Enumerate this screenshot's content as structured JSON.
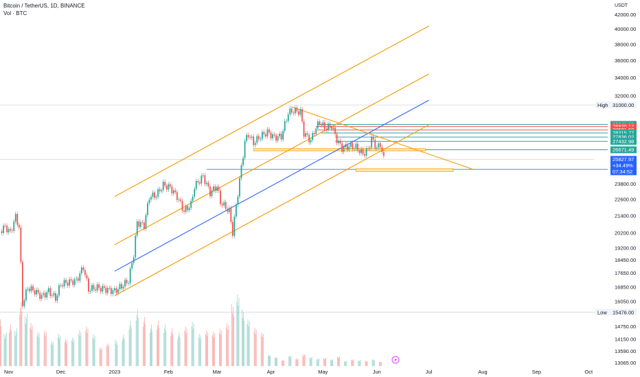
{
  "header": {
    "symbol": "Bitcoin / TetherUS, 1D, BINANCE",
    "volume": "Vol · BTC",
    "currency": "USDT"
  },
  "colors": {
    "up": "#26a69a",
    "down": "#ef5350",
    "vol_up": "#9fd4cd",
    "vol_down": "#f7a9a7",
    "channel": "#f59d0b",
    "mid_line": "#2962ff",
    "green_level": "#26a69a",
    "red_level": "#ef5350",
    "last_price": "#2962ff",
    "high_low_line": "#d1d4dc"
  },
  "chart_data": {
    "type": "candlestick",
    "y_scale": "log",
    "ylim": [
      13065,
      43000
    ],
    "xlim": [
      "2022-10-27",
      "2023-10-10"
    ],
    "y_ticks": [
      "42000.00",
      "40000.00",
      "38000.00",
      "36000.00",
      "34000.00",
      "32000.00",
      "31000.00",
      "23800.00",
      "22600.00",
      "21400.00",
      "20200.00",
      "19200.00",
      "18450.00",
      "17650.00",
      "16850.00",
      "16050.00",
      "14750.00",
      "14150.00",
      "13590.00",
      "13065.00"
    ],
    "x_ticks": [
      {
        "label": "Nov",
        "date": "2022-11-01"
      },
      {
        "label": "Dec",
        "date": "2022-12-01"
      },
      {
        "label": "2023",
        "date": "2023-01-01"
      },
      {
        "label": "Feb",
        "date": "2023-02-01"
      },
      {
        "label": "Mar",
        "date": "2023-03-01"
      },
      {
        "label": "Apr",
        "date": "2023-04-01"
      },
      {
        "label": "May",
        "date": "2023-05-01"
      },
      {
        "label": "Jun",
        "date": "2023-06-01"
      },
      {
        "label": "Jul",
        "date": "2023-07-01"
      },
      {
        "label": "Aug",
        "date": "2023-08-01"
      },
      {
        "label": "Sep",
        "date": "2023-09-01"
      },
      {
        "label": "Oct",
        "date": "2023-10-01"
      }
    ],
    "closes": [
      {
        "date": "2022-10-27",
        "close": 20300
      },
      {
        "date": "2022-10-30",
        "close": 20600
      },
      {
        "date": "2022-11-02",
        "close": 20200
      },
      {
        "date": "2022-11-05",
        "close": 21300
      },
      {
        "date": "2022-11-07",
        "close": 20600
      },
      {
        "date": "2022-11-09",
        "close": 15900
      },
      {
        "date": "2022-11-12",
        "close": 16800
      },
      {
        "date": "2022-11-16",
        "close": 16600
      },
      {
        "date": "2022-11-20",
        "close": 16300
      },
      {
        "date": "2022-11-24",
        "close": 16600
      },
      {
        "date": "2022-11-28",
        "close": 16200
      },
      {
        "date": "2022-12-01",
        "close": 17000
      },
      {
        "date": "2022-12-05",
        "close": 17100
      },
      {
        "date": "2022-12-10",
        "close": 17200
      },
      {
        "date": "2022-12-14",
        "close": 18000
      },
      {
        "date": "2022-12-17",
        "close": 16700
      },
      {
        "date": "2022-12-22",
        "close": 16800
      },
      {
        "date": "2022-12-27",
        "close": 16700
      },
      {
        "date": "2023-01-01",
        "close": 16600
      },
      {
        "date": "2023-01-06",
        "close": 16950
      },
      {
        "date": "2023-01-09",
        "close": 17200
      },
      {
        "date": "2023-01-12",
        "close": 18800
      },
      {
        "date": "2023-01-14",
        "close": 20900
      },
      {
        "date": "2023-01-18",
        "close": 20700
      },
      {
        "date": "2023-01-21",
        "close": 22800
      },
      {
        "date": "2023-01-25",
        "close": 22900
      },
      {
        "date": "2023-01-29",
        "close": 23700
      },
      {
        "date": "2023-02-02",
        "close": 23500
      },
      {
        "date": "2023-02-06",
        "close": 22800
      },
      {
        "date": "2023-02-10",
        "close": 21700
      },
      {
        "date": "2023-02-14",
        "close": 22200
      },
      {
        "date": "2023-02-16",
        "close": 23600
      },
      {
        "date": "2023-02-21",
        "close": 24400
      },
      {
        "date": "2023-02-25",
        "close": 23100
      },
      {
        "date": "2023-03-01",
        "close": 23600
      },
      {
        "date": "2023-03-03",
        "close": 22400
      },
      {
        "date": "2023-03-08",
        "close": 21700
      },
      {
        "date": "2023-03-10",
        "close": 20200
      },
      {
        "date": "2023-03-12",
        "close": 22100
      },
      {
        "date": "2023-03-14",
        "close": 24100
      },
      {
        "date": "2023-03-17",
        "close": 27400
      },
      {
        "date": "2023-03-19",
        "close": 28100
      },
      {
        "date": "2023-03-22",
        "close": 27300
      },
      {
        "date": "2023-03-26",
        "close": 27900
      },
      {
        "date": "2023-03-30",
        "close": 28300
      },
      {
        "date": "2023-04-03",
        "close": 27800
      },
      {
        "date": "2023-04-07",
        "close": 27900
      },
      {
        "date": "2023-04-11",
        "close": 30200
      },
      {
        "date": "2023-04-14",
        "close": 30400
      },
      {
        "date": "2023-04-18",
        "close": 30300
      },
      {
        "date": "2023-04-20",
        "close": 28200
      },
      {
        "date": "2023-04-24",
        "close": 27500
      },
      {
        "date": "2023-04-26",
        "close": 28400
      },
      {
        "date": "2023-04-29",
        "close": 29300
      },
      {
        "date": "2023-05-02",
        "close": 28700
      },
      {
        "date": "2023-05-06",
        "close": 28900
      },
      {
        "date": "2023-05-09",
        "close": 27600
      },
      {
        "date": "2023-05-12",
        "close": 26800
      },
      {
        "date": "2023-05-16",
        "close": 27000
      },
      {
        "date": "2023-05-20",
        "close": 26900
      },
      {
        "date": "2023-05-24",
        "close": 26300
      },
      {
        "date": "2023-05-27",
        "close": 26700
      },
      {
        "date": "2023-05-29",
        "close": 27700
      },
      {
        "date": "2023-06-01",
        "close": 26800
      },
      {
        "date": "2023-06-03",
        "close": 27200
      },
      {
        "date": "2023-06-05",
        "close": 25828
      }
    ],
    "channel_lines": [
      {
        "from": {
          "date": "2023-01-01",
          "value": 22800
        },
        "to": {
          "date": "2023-07-01",
          "value": 40400
        }
      },
      {
        "from": {
          "date": "2023-01-01",
          "value": 19400
        },
        "to": {
          "date": "2023-07-01",
          "value": 34400
        }
      },
      {
        "from": {
          "date": "2023-01-01",
          "value": 16350
        },
        "to": {
          "date": "2023-07-01",
          "value": 29000
        }
      }
    ],
    "median_line": {
      "from": {
        "date": "2023-01-01",
        "value": 17750
      },
      "to": {
        "date": "2023-07-01",
        "value": 31500
      }
    },
    "descending_line": {
      "from": {
        "date": "2023-04-13",
        "value": 30800
      },
      "to": {
        "date": "2023-07-27",
        "value": 24950
      }
    },
    "levels": [
      {
        "value": 29041.29,
        "label": "29041.29",
        "kind": "green",
        "start": "2023-04-28"
      },
      {
        "value": 28830.17,
        "label": "28830.17",
        "kind": "red",
        "start": "2023-04-27"
      },
      {
        "value": 28501.5,
        "label": "28501.50",
        "kind": "red",
        "start": "2023-04-28"
      },
      {
        "value": 28215.77,
        "label": "28215.77",
        "kind": "green",
        "start": "2023-04-30"
      },
      {
        "value": 27836.02,
        "label": "27836.02",
        "kind": "green",
        "start": "2023-05-08"
      },
      {
        "value": 27432.98,
        "label": "27432.98",
        "kind": "green",
        "start": "2023-05-08"
      },
      {
        "value": 26671.49,
        "label": "26671.49",
        "kind": "green",
        "start": "2023-06-04"
      },
      {
        "value": 24978.09,
        "label": "24978.09",
        "kind": "green",
        "start": "2023-02-23"
      }
    ],
    "zones": [
      {
        "from_date": "2023-03-22",
        "to_date": "2023-06-29",
        "low": 26580,
        "high": 26780
      },
      {
        "from_date": "2023-05-20",
        "to_date": "2023-07-15",
        "low": 24800,
        "high": 25040
      }
    ],
    "high": {
      "label": "High",
      "value": 31000.0,
      "text": "31000.00"
    },
    "low": {
      "label": "Low",
      "value": 15476.0,
      "text": "15476.00"
    },
    "last": {
      "price": "25827.97",
      "change": "+34.49%",
      "countdown": "07:34:52",
      "value": 25827.97
    },
    "volume_bars": [
      {
        "date": "2022-10-27",
        "volume": 0.62,
        "dir": "down"
      },
      {
        "date": "2022-10-30",
        "volume": 0.45,
        "dir": "up"
      },
      {
        "date": "2022-11-02",
        "volume": 0.55,
        "dir": "down"
      },
      {
        "date": "2022-11-05",
        "volume": 0.5,
        "dir": "up"
      },
      {
        "date": "2022-11-08",
        "volume": 0.85,
        "dir": "down"
      },
      {
        "date": "2022-11-11",
        "volume": 0.7,
        "dir": "up"
      },
      {
        "date": "2022-11-14",
        "volume": 0.6,
        "dir": "down"
      },
      {
        "date": "2022-11-18",
        "volume": 0.48,
        "dir": "up"
      },
      {
        "date": "2022-11-22",
        "volume": 0.5,
        "dir": "down"
      },
      {
        "date": "2022-11-26",
        "volume": 0.35,
        "dir": "up"
      },
      {
        "date": "2022-11-30",
        "volume": 0.45,
        "dir": "up"
      },
      {
        "date": "2022-12-04",
        "volume": 0.38,
        "dir": "down"
      },
      {
        "date": "2022-12-08",
        "volume": 0.4,
        "dir": "up"
      },
      {
        "date": "2022-12-12",
        "volume": 0.5,
        "dir": "up"
      },
      {
        "date": "2022-12-16",
        "volume": 0.55,
        "dir": "down"
      },
      {
        "date": "2022-12-20",
        "volume": 0.42,
        "dir": "up"
      },
      {
        "date": "2022-12-24",
        "volume": 0.25,
        "dir": "down"
      },
      {
        "date": "2022-12-28",
        "volume": 0.3,
        "dir": "down"
      },
      {
        "date": "2023-01-02",
        "volume": 0.35,
        "dir": "up"
      },
      {
        "date": "2023-01-06",
        "volume": 0.42,
        "dir": "up"
      },
      {
        "date": "2023-01-10",
        "volume": 0.6,
        "dir": "up"
      },
      {
        "date": "2023-01-14",
        "volume": 0.75,
        "dir": "up"
      },
      {
        "date": "2023-01-18",
        "volume": 0.65,
        "dir": "down"
      },
      {
        "date": "2023-01-22",
        "volume": 0.55,
        "dir": "up"
      },
      {
        "date": "2023-01-26",
        "volume": 0.6,
        "dir": "down"
      },
      {
        "date": "2023-01-30",
        "volume": 0.55,
        "dir": "up"
      },
      {
        "date": "2023-02-03",
        "volume": 0.5,
        "dir": "down"
      },
      {
        "date": "2023-02-07",
        "volume": 0.45,
        "dir": "up"
      },
      {
        "date": "2023-02-11",
        "volume": 0.55,
        "dir": "down"
      },
      {
        "date": "2023-02-15",
        "volume": 0.62,
        "dir": "up"
      },
      {
        "date": "2023-02-19",
        "volume": 0.45,
        "dir": "up"
      },
      {
        "date": "2023-02-23",
        "volume": 0.5,
        "dir": "down"
      },
      {
        "date": "2023-02-27",
        "volume": 0.48,
        "dir": "down"
      },
      {
        "date": "2023-03-03",
        "volume": 0.52,
        "dir": "down"
      },
      {
        "date": "2023-03-07",
        "volume": 0.6,
        "dir": "down"
      },
      {
        "date": "2023-03-10",
        "volume": 0.82,
        "dir": "down"
      },
      {
        "date": "2023-03-13",
        "volume": 1.0,
        "dir": "up"
      },
      {
        "date": "2023-03-16",
        "volume": 0.75,
        "dir": "up"
      },
      {
        "date": "2023-03-19",
        "volume": 0.62,
        "dir": "up"
      },
      {
        "date": "2023-03-23",
        "volume": 0.5,
        "dir": "down"
      },
      {
        "date": "2023-03-27",
        "volume": 0.45,
        "dir": "down"
      },
      {
        "date": "2023-03-31",
        "volume": 0.15,
        "dir": "up"
      },
      {
        "date": "2023-04-04",
        "volume": 0.12,
        "dir": "up"
      },
      {
        "date": "2023-04-08",
        "volume": 0.08,
        "dir": "down"
      },
      {
        "date": "2023-04-12",
        "volume": 0.14,
        "dir": "up"
      },
      {
        "date": "2023-04-16",
        "volume": 0.1,
        "dir": "down"
      },
      {
        "date": "2023-04-20",
        "volume": 0.16,
        "dir": "down"
      },
      {
        "date": "2023-04-24",
        "volume": 0.12,
        "dir": "up"
      },
      {
        "date": "2023-04-28",
        "volume": 0.1,
        "dir": "up"
      },
      {
        "date": "2023-05-02",
        "volume": 0.11,
        "dir": "down"
      },
      {
        "date": "2023-05-06",
        "volume": 0.09,
        "dir": "up"
      },
      {
        "date": "2023-05-10",
        "volume": 0.13,
        "dir": "down"
      },
      {
        "date": "2023-05-14",
        "volume": 0.07,
        "dir": "up"
      },
      {
        "date": "2023-05-18",
        "volume": 0.09,
        "dir": "down"
      },
      {
        "date": "2023-05-22",
        "volume": 0.08,
        "dir": "up"
      },
      {
        "date": "2023-05-26",
        "volume": 0.07,
        "dir": "down"
      },
      {
        "date": "2023-05-30",
        "volume": 0.09,
        "dir": "up"
      },
      {
        "date": "2023-06-03",
        "volume": 0.06,
        "dir": "down"
      }
    ]
  }
}
